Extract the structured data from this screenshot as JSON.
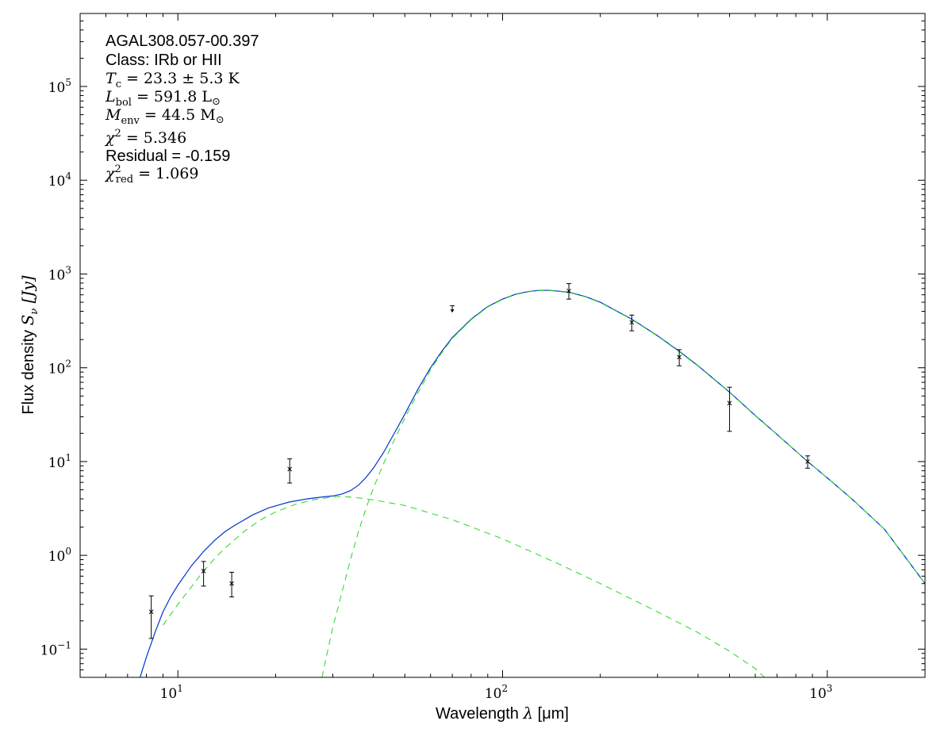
{
  "chart_data": {
    "type": "scatter",
    "xlabel_text": "Wavelength ",
    "xlabel_sym": "λ",
    "xlabel_unit": " [μm]",
    "ylabel_text": "Flux density ",
    "ylabel_sym": "S",
    "ylabel_sub": "ν",
    "ylabel_unit": " [Jy]",
    "x_scale": "log",
    "y_scale": "log",
    "xlim": [
      5,
      2000
    ],
    "ylim": [
      0.05,
      600000
    ],
    "grid": false,
    "x_ticks": [
      {
        "value": 10,
        "base": "10",
        "exp": "1"
      },
      {
        "value": 100,
        "base": "10",
        "exp": "2"
      },
      {
        "value": 1000,
        "base": "10",
        "exp": "3"
      }
    ],
    "y_ticks": [
      {
        "value": 0.1,
        "base": "10",
        "exp": "−1"
      },
      {
        "value": 1,
        "base": "10",
        "exp": "0"
      },
      {
        "value": 10,
        "base": "10",
        "exp": "1"
      },
      {
        "value": 100,
        "base": "10",
        "exp": "2"
      },
      {
        "value": 1000,
        "base": "10",
        "exp": "3"
      },
      {
        "value": 10000,
        "base": "10",
        "exp": "4"
      },
      {
        "value": 100000,
        "base": "10",
        "exp": "5"
      }
    ],
    "annotations": {
      "source": "AGAL308.057-00.397",
      "class_line": "Class: IRb or HII",
      "tc_sym": "T",
      "tc_sub": "c",
      "tc_val": " = 23.3 ± 5.3 K",
      "lbol_sym": "L",
      "lbol_sub": "bol",
      "lbol_val": " = 591.8 L",
      "lbol_unit_sub": "⊙",
      "menv_sym": "M",
      "menv_sub": "env",
      "menv_val": " = 44.5 M",
      "menv_unit_sub": "⊙",
      "chi2_sym": "χ",
      "chi2_sup": "2",
      "chi2_val": " = 5.346",
      "residual": "Residual = -0.159",
      "chired_sym": "χ",
      "chired_sup": "2",
      "chired_sub": "red",
      "chired_val": " = 1.069"
    },
    "data_points": [
      {
        "x": 8.28,
        "y": 0.25,
        "err_low": 0.13,
        "err_high": 0.37
      },
      {
        "x": 12.0,
        "y": 0.68,
        "err_low": 0.47,
        "err_high": 0.86
      },
      {
        "x": 14.65,
        "y": 0.5,
        "err_low": 0.36,
        "err_high": 0.66
      },
      {
        "x": 22.1,
        "y": 8.3,
        "err_low": 5.9,
        "err_high": 10.7
      },
      {
        "x": 160,
        "y": 660,
        "err_low": 540,
        "err_high": 790
      },
      {
        "x": 250,
        "y": 305,
        "err_low": 248,
        "err_high": 365
      },
      {
        "x": 350,
        "y": 130,
        "err_low": 105,
        "err_high": 156
      },
      {
        "x": 500,
        "y": 42,
        "err_low": 21,
        "err_high": 62
      },
      {
        "x": 870,
        "y": 10.0,
        "err_low": 8.5,
        "err_high": 11.5
      }
    ],
    "upper_limits": [
      {
        "x": 70,
        "y": 460,
        "y_arrow": 395
      }
    ],
    "series": [
      {
        "style": "solid",
        "color": "#0033cc",
        "points": [
          [
            7.65,
            0.05
          ],
          [
            8.0,
            0.082
          ],
          [
            8.5,
            0.15
          ],
          [
            9.0,
            0.25
          ],
          [
            9.5,
            0.36
          ],
          [
            10,
            0.48
          ],
          [
            11,
            0.77
          ],
          [
            12,
            1.1
          ],
          [
            13,
            1.45
          ],
          [
            14,
            1.8
          ],
          [
            15,
            2.1
          ],
          [
            17,
            2.7
          ],
          [
            19,
            3.2
          ],
          [
            22,
            3.7
          ],
          [
            25,
            4.0
          ],
          [
            28,
            4.2
          ],
          [
            30,
            4.3
          ],
          [
            32,
            4.5
          ],
          [
            34,
            4.9
          ],
          [
            36,
            5.6
          ],
          [
            38,
            6.8
          ],
          [
            40,
            8.5
          ],
          [
            43,
            12.5
          ],
          [
            46,
            19
          ],
          [
            50,
            32
          ],
          [
            55,
            60
          ],
          [
            60,
            100
          ],
          [
            65,
            150
          ],
          [
            70,
            210
          ],
          [
            80,
            330
          ],
          [
            90,
            450
          ],
          [
            100,
            540
          ],
          [
            110,
            610
          ],
          [
            120,
            650
          ],
          [
            130,
            670
          ],
          [
            140,
            670
          ],
          [
            160,
            640
          ],
          [
            180,
            575
          ],
          [
            200,
            500
          ],
          [
            250,
            330
          ],
          [
            300,
            220
          ],
          [
            350,
            150
          ],
          [
            400,
            105
          ],
          [
            500,
            55
          ],
          [
            600,
            31
          ],
          [
            700,
            19.5
          ],
          [
            870,
            10
          ],
          [
            1000,
            6.7
          ],
          [
            1200,
            3.9
          ],
          [
            1500,
            1.9
          ],
          [
            2000,
            0.5
          ]
        ]
      },
      {
        "style": "dashed",
        "color": "#33dd33",
        "points": [
          [
            9.0,
            0.18
          ],
          [
            10,
            0.3
          ],
          [
            11,
            0.46
          ],
          [
            12,
            0.68
          ],
          [
            13,
            0.93
          ],
          [
            14,
            1.2
          ],
          [
            16,
            1.8
          ],
          [
            18,
            2.4
          ],
          [
            20,
            2.9
          ],
          [
            23,
            3.5
          ],
          [
            26,
            3.9
          ],
          [
            30,
            4.2
          ],
          [
            32,
            4.25
          ],
          [
            35,
            4.15
          ],
          [
            40,
            3.9
          ],
          [
            50,
            3.4
          ],
          [
            70,
            2.4
          ],
          [
            100,
            1.5
          ],
          [
            150,
            0.8
          ],
          [
            200,
            0.5
          ],
          [
            300,
            0.25
          ],
          [
            400,
            0.15
          ],
          [
            500,
            0.095
          ],
          [
            600,
            0.062
          ],
          [
            640,
            0.05
          ]
        ]
      },
      {
        "style": "dashed",
        "color": "#33dd33",
        "points": [
          [
            27.8,
            0.05
          ],
          [
            29,
            0.1
          ],
          [
            30,
            0.17
          ],
          [
            32,
            0.4
          ],
          [
            34,
            0.9
          ],
          [
            36,
            1.8
          ],
          [
            38,
            3.2
          ],
          [
            40,
            5.2
          ],
          [
            43,
            9.5
          ],
          [
            46,
            16
          ],
          [
            50,
            29
          ],
          [
            55,
            55
          ],
          [
            60,
            95
          ],
          [
            65,
            145
          ],
          [
            70,
            205
          ],
          [
            80,
            325
          ],
          [
            90,
            445
          ],
          [
            100,
            535
          ],
          [
            110,
            605
          ],
          [
            120,
            645
          ],
          [
            130,
            665
          ],
          [
            140,
            665
          ],
          [
            160,
            635
          ],
          [
            180,
            570
          ],
          [
            200,
            495
          ],
          [
            250,
            327
          ],
          [
            300,
            218
          ],
          [
            350,
            148
          ],
          [
            400,
            104
          ],
          [
            500,
            54.5
          ],
          [
            600,
            30.8
          ],
          [
            700,
            19.4
          ],
          [
            870,
            10
          ],
          [
            1000,
            6.7
          ],
          [
            1200,
            3.9
          ],
          [
            1500,
            1.9
          ],
          [
            2000,
            0.5
          ]
        ]
      }
    ]
  }
}
